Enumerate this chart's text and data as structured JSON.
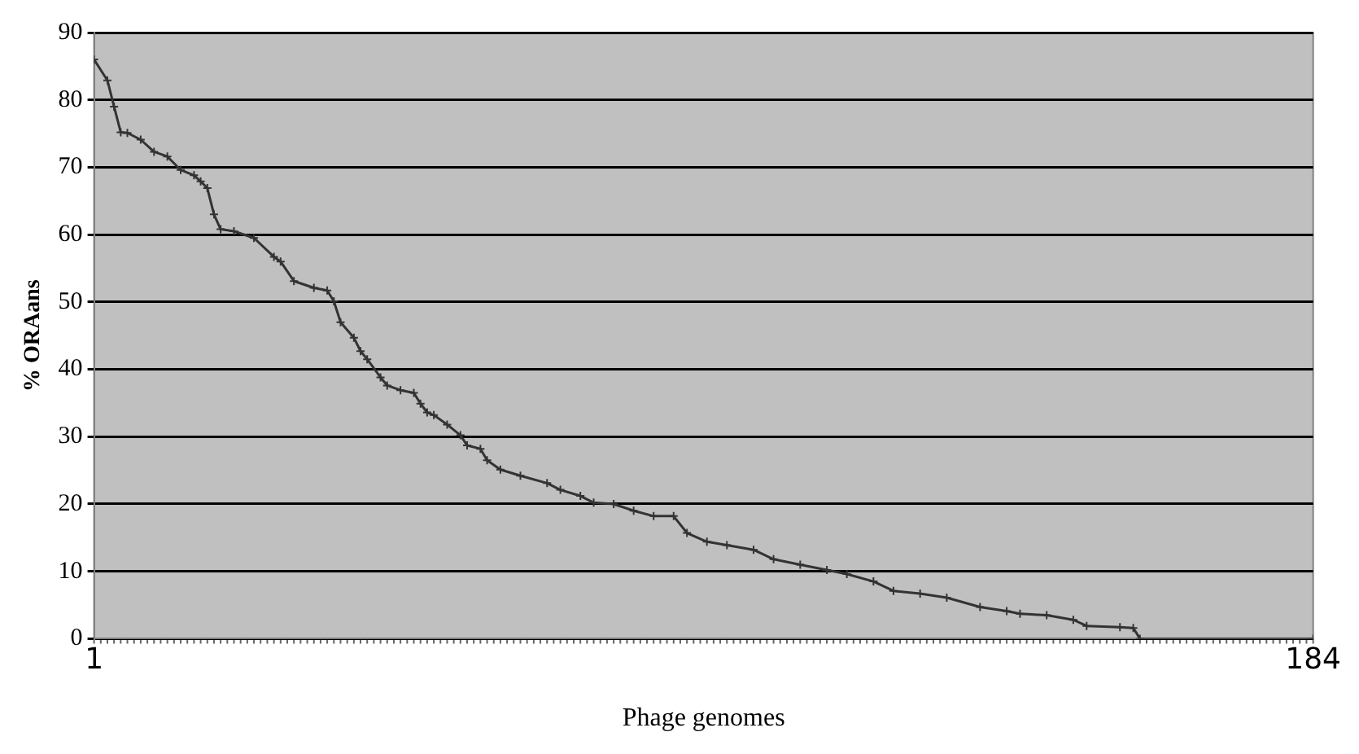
{
  "chart_data": {
    "type": "line",
    "xlabel": "Phage genomes",
    "ylabel": "% ORAans",
    "x": [
      1,
      3,
      4,
      5,
      6,
      8,
      10,
      12,
      14,
      16,
      17,
      18,
      19,
      20,
      22,
      25,
      28,
      29,
      31,
      34,
      36,
      37,
      38,
      40,
      41,
      42,
      44,
      45,
      47,
      49,
      50,
      51,
      52,
      54,
      56,
      57,
      59,
      60,
      62,
      65,
      69,
      71,
      74,
      76,
      79,
      82,
      85,
      88,
      90,
      93,
      96,
      100,
      103,
      107,
      111,
      114,
      118,
      121,
      125,
      129,
      134,
      138,
      140,
      144,
      148,
      150,
      155,
      157,
      158,
      184
    ],
    "series": [
      {
        "color": "#333333",
        "values": [
          86,
          82.9,
          79,
          75.2,
          75.1,
          74.1,
          72.3,
          71.6,
          69.6,
          68.8,
          67.9,
          66.9,
          63,
          60.8,
          60.5,
          59.5,
          56.7,
          56,
          53.1,
          52.1,
          51.7,
          50.1,
          47,
          44.7,
          42.7,
          41.5,
          38.8,
          37.6,
          36.9,
          36.5,
          34.9,
          33.6,
          33.2,
          31.8,
          30.2,
          28.7,
          28.2,
          26.5,
          25.1,
          24.2,
          23.1,
          22.1,
          21.2,
          20.2,
          20,
          19,
          18.2,
          18.2,
          15.7,
          14.4,
          13.9,
          13.2,
          11.8,
          11,
          10.2,
          9.6,
          8.5,
          7.1,
          6.7,
          6.1,
          4.7,
          4.1,
          3.7,
          3.5,
          2.8,
          1.9,
          1.7,
          1.6,
          0,
          0
        ]
      }
    ],
    "xlim": [
      1,
      184
    ],
    "xticks": [
      1,
      184
    ],
    "ylim": [
      0,
      90
    ],
    "yticks": [
      0,
      10,
      20,
      30,
      40,
      50,
      60,
      70,
      80,
      90
    ],
    "grid": "y",
    "legend": false,
    "marker": "cross",
    "line_style": "solid"
  }
}
